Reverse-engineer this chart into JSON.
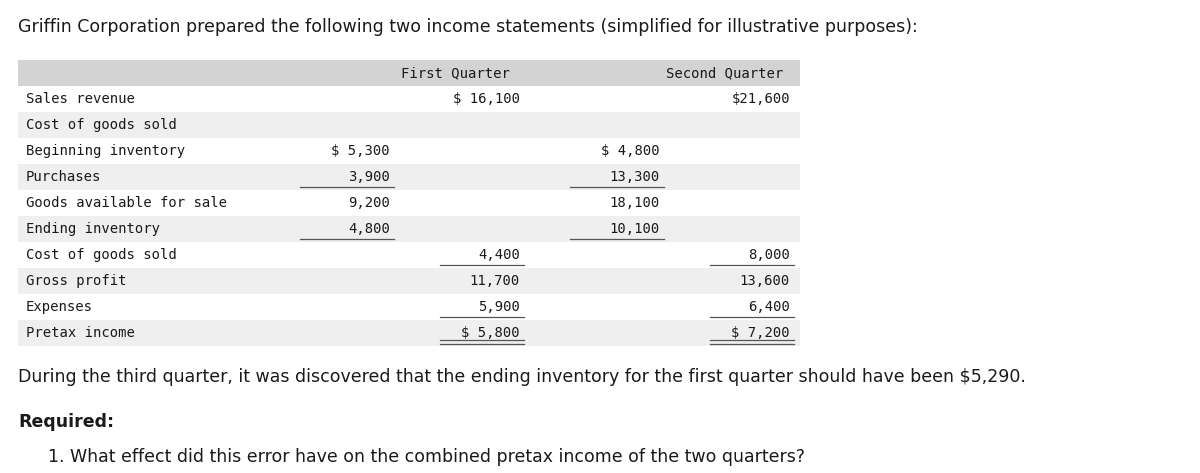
{
  "title": "Griffin Corporation prepared the following two income statements (simplified for illustrative purposes):",
  "bg_color": "#ffffff",
  "table_bg_header": "#d3d3d3",
  "table_bg_light": "#efefef",
  "table_bg_white": "#ffffff",
  "font_family": "monospace",
  "header_row": [
    "",
    "First Quarter",
    "Second Quarter"
  ],
  "rows": [
    {
      "label": "Sales revenue",
      "c1a": "",
      "c1b": "$ 16,100",
      "c2a": "",
      "c2b": "$21,600",
      "ul_c1a": false,
      "ul_c2a": false,
      "ul_c1b": false,
      "ul_c2b": false,
      "double_c1b": false,
      "double_c2b": false
    },
    {
      "label": "Cost of goods sold",
      "c1a": "",
      "c1b": "",
      "c2a": "",
      "c2b": "",
      "ul_c1a": false,
      "ul_c2a": false,
      "ul_c1b": false,
      "ul_c2b": false,
      "double_c1b": false,
      "double_c2b": false
    },
    {
      "label": "Beginning inventory",
      "c1a": "$ 5,300",
      "c1b": "",
      "c2a": "$ 4,800",
      "c2b": "",
      "ul_c1a": false,
      "ul_c2a": false,
      "ul_c1b": false,
      "ul_c2b": false,
      "double_c1b": false,
      "double_c2b": false
    },
    {
      "label": "Purchases",
      "c1a": "3,900",
      "c1b": "",
      "c2a": "13,300",
      "c2b": "",
      "ul_c1a": true,
      "ul_c2a": true,
      "ul_c1b": false,
      "ul_c2b": false,
      "double_c1b": false,
      "double_c2b": false
    },
    {
      "label": "Goods available for sale",
      "c1a": "9,200",
      "c1b": "",
      "c2a": "18,100",
      "c2b": "",
      "ul_c1a": false,
      "ul_c2a": false,
      "ul_c1b": false,
      "ul_c2b": false,
      "double_c1b": false,
      "double_c2b": false
    },
    {
      "label": "Ending inventory",
      "c1a": "4,800",
      "c1b": "",
      "c2a": "10,100",
      "c2b": "",
      "ul_c1a": true,
      "ul_c2a": true,
      "ul_c1b": false,
      "ul_c2b": false,
      "double_c1b": false,
      "double_c2b": false
    },
    {
      "label": "Cost of goods sold",
      "c1a": "",
      "c1b": "4,400",
      "c2a": "",
      "c2b": "8,000",
      "ul_c1a": false,
      "ul_c2a": false,
      "ul_c1b": true,
      "ul_c2b": true,
      "double_c1b": false,
      "double_c2b": false
    },
    {
      "label": "Gross profit",
      "c1a": "",
      "c1b": "11,700",
      "c2a": "",
      "c2b": "13,600",
      "ul_c1a": false,
      "ul_c2a": false,
      "ul_c1b": false,
      "ul_c2b": false,
      "double_c1b": false,
      "double_c2b": false
    },
    {
      "label": "Expenses",
      "c1a": "",
      "c1b": "5,900",
      "c2a": "",
      "c2b": "6,400",
      "ul_c1a": false,
      "ul_c2a": false,
      "ul_c1b": true,
      "ul_c2b": true,
      "double_c1b": false,
      "double_c2b": false
    },
    {
      "label": "Pretax income",
      "c1a": "",
      "c1b": "$ 5,800",
      "c2a": "",
      "c2b": "$ 7,200",
      "ul_c1a": false,
      "ul_c2a": false,
      "ul_c1b": false,
      "ul_c2b": false,
      "double_c1b": true,
      "double_c2b": true
    }
  ],
  "note": "During the third quarter, it was discovered that the ending inventory for the first quarter should have been $5,290.",
  "required_label": "Required:",
  "question": "1. What effect did this error have on the combined pretax income of the two quarters?"
}
